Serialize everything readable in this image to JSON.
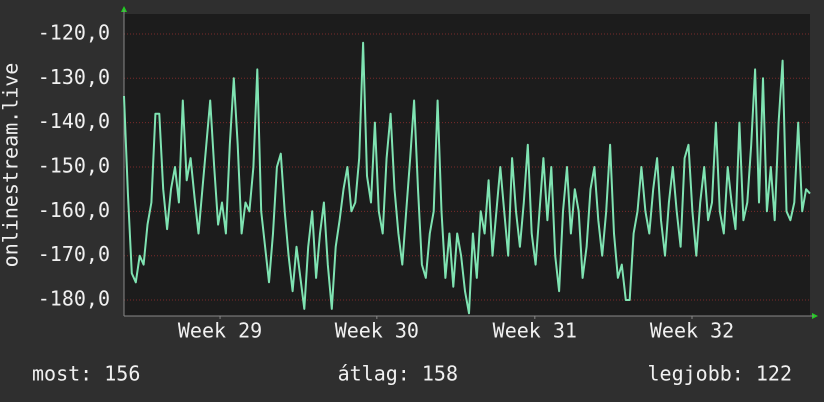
{
  "chart_data": {
    "type": "line",
    "y_label": "onlinestream.live",
    "series": [
      {
        "name": "onlinestream.live",
        "color": "#7fe3b2",
        "values": [
          -134,
          -156,
          -174,
          -176,
          -170,
          -172,
          -163,
          -158,
          -138,
          -138,
          -155,
          -164,
          -155,
          -150,
          -158,
          -135,
          -153,
          -148,
          -157,
          -165,
          -155,
          -145,
          -135,
          -150,
          -163,
          -158,
          -165,
          -145,
          -130,
          -145,
          -165,
          -158,
          -160,
          -150,
          -128,
          -160,
          -168,
          -176,
          -165,
          -150,
          -147,
          -160,
          -170,
          -178,
          -168,
          -175,
          -182,
          -168,
          -160,
          -175,
          -165,
          -158,
          -172,
          -182,
          -168,
          -162,
          -155,
          -150,
          -160,
          -158,
          -148,
          -122,
          -152,
          -158,
          -140,
          -160,
          -165,
          -148,
          -138,
          -155,
          -165,
          -172,
          -160,
          -148,
          -135,
          -155,
          -172,
          -175,
          -165,
          -160,
          -135,
          -160,
          -175,
          -165,
          -177,
          -165,
          -170,
          -178,
          -183,
          -165,
          -175,
          -160,
          -165,
          -153,
          -170,
          -160,
          -150,
          -160,
          -170,
          -148,
          -160,
          -168,
          -158,
          -145,
          -165,
          -172,
          -160,
          -148,
          -162,
          -150,
          -170,
          -178,
          -160,
          -150,
          -165,
          -155,
          -160,
          -175,
          -168,
          -155,
          -150,
          -162,
          -170,
          -160,
          -145,
          -165,
          -175,
          -172,
          -180,
          -180,
          -165,
          -160,
          -150,
          -160,
          -165,
          -155,
          -148,
          -162,
          -170,
          -158,
          -150,
          -160,
          -168,
          -148,
          -145,
          -160,
          -170,
          -158,
          -150,
          -162,
          -158,
          -140,
          -160,
          -165,
          -150,
          -158,
          -164,
          -140,
          -162,
          -158,
          -145,
          -128,
          -158,
          -130,
          -160,
          -150,
          -162,
          -140,
          -126,
          -160,
          -162,
          -158,
          -140,
          -160,
          -155,
          -156
        ]
      }
    ],
    "xlim": [
      0,
      175
    ],
    "xticks": [
      {
        "value": 24.5,
        "label": "Week 29"
      },
      {
        "value": 64.5,
        "label": "Week 30"
      },
      {
        "value": 104.8,
        "label": "Week 31"
      },
      {
        "value": 144.9,
        "label": "Week 32"
      }
    ],
    "ylim": [
      -183.6,
      -115.5
    ],
    "yticks": [
      {
        "value": -180,
        "label": "-180,0"
      },
      {
        "value": -170,
        "label": "-170,0"
      },
      {
        "value": -160,
        "label": "-160,0"
      },
      {
        "value": -150,
        "label": "-150,0"
      },
      {
        "value": -140,
        "label": "-140,0"
      },
      {
        "value": -130,
        "label": "-130,0"
      },
      {
        "value": -120,
        "label": "-120,0"
      }
    ],
    "grid": true,
    "footer": [
      "most: 156",
      "átlag: 158",
      "legjobb: 122"
    ]
  }
}
